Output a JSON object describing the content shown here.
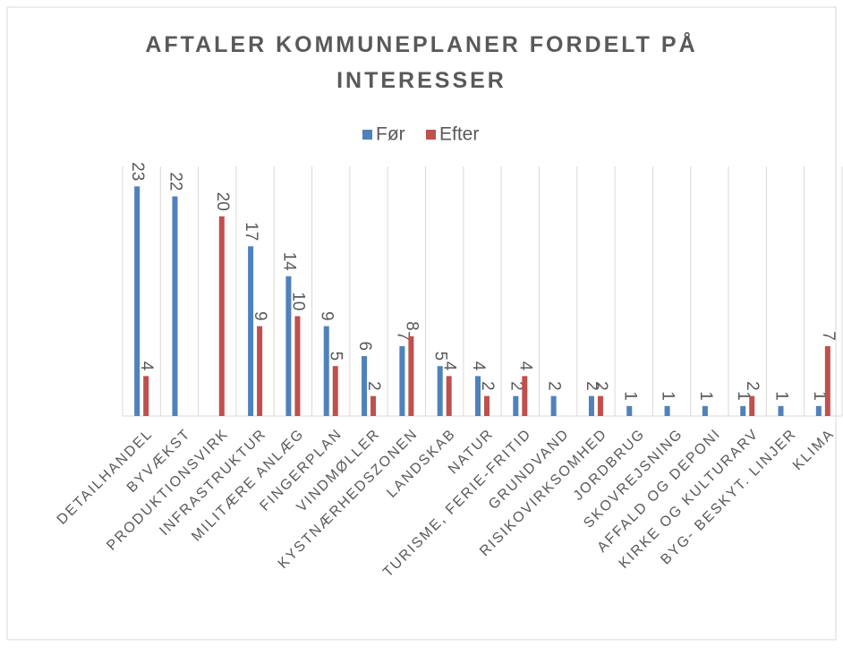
{
  "chart_data": {
    "type": "bar",
    "title": "AFTALER KOMMUNEPLANER FORDELT PÅ INTERESSER",
    "categories": [
      "DETAILHANDEL",
      "BYVÆKST",
      "PRODUKTIONSVIRK",
      "INFRASTRUKTUR",
      "MILITÆRE ANLÆG",
      "FINGERPLAN",
      "VINDMØLLER",
      "KYSTNÆRHEDSZONEN",
      "LANDSKAB",
      "NATUR",
      "TURISME, FERIE-FRITID",
      "GRUNDVAND",
      "RISIKOVIRKSOMHED",
      "JORDBRUG",
      "SKOVREJSNING",
      "AFFALD OG DEPONI",
      "KIRKE OG KULTURARV",
      "BYG- BESKYT. LINJER",
      "KLIMA"
    ],
    "series": [
      {
        "name": "Før",
        "color": "#4f81bd",
        "values": [
          23,
          22,
          null,
          17,
          14,
          9,
          6,
          7,
          5,
          4,
          2,
          2,
          2,
          1,
          1,
          1,
          1,
          1,
          1
        ]
      },
      {
        "name": "Efter",
        "color": "#c0504d",
        "values": [
          4,
          null,
          20,
          9,
          10,
          5,
          2,
          8,
          4,
          2,
          4,
          null,
          2,
          null,
          null,
          null,
          2,
          null,
          7
        ]
      }
    ],
    "ylim": [
      0,
      25
    ],
    "legend": "top"
  }
}
